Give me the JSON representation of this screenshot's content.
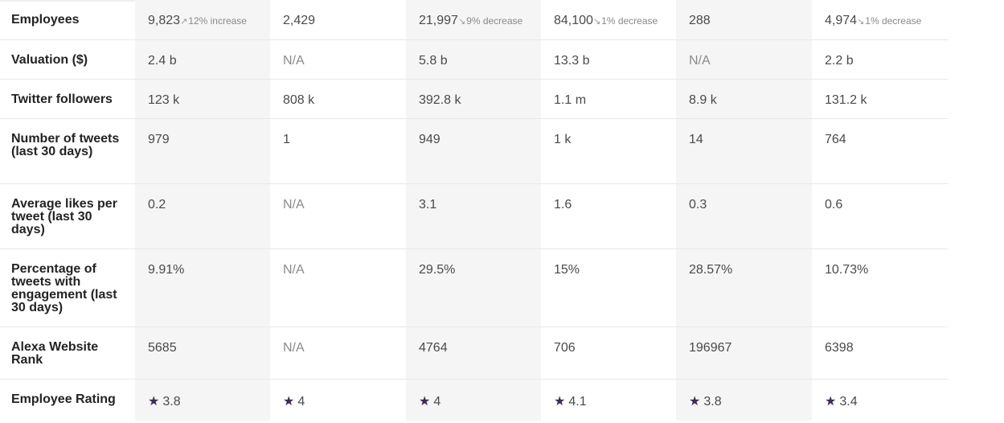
{
  "rows": [
    {
      "label": "Employees",
      "cells": [
        {
          "value": "9,823",
          "trend": "12% increase",
          "trend_dir": "up"
        },
        {
          "value": "2,429"
        },
        {
          "value": "21,997",
          "trend": "9% decrease",
          "trend_dir": "down"
        },
        {
          "value": "84,100",
          "trend": "1% decrease",
          "trend_dir": "down"
        },
        {
          "value": "288"
        },
        {
          "value": "4,974",
          "trend": "1% decrease",
          "trend_dir": "down"
        }
      ]
    },
    {
      "label": "Valuation ($)",
      "cells": [
        {
          "value": "2.4 b"
        },
        {
          "value": "N/A"
        },
        {
          "value": "5.8 b"
        },
        {
          "value": "13.3 b"
        },
        {
          "value": "N/A"
        },
        {
          "value": "2.2 b"
        }
      ]
    },
    {
      "label": "Twitter followers",
      "cells": [
        {
          "value": "123 k"
        },
        {
          "value": "808 k"
        },
        {
          "value": "392.8 k"
        },
        {
          "value": "1.1 m"
        },
        {
          "value": "8.9 k"
        },
        {
          "value": "131.2 k"
        }
      ]
    },
    {
      "label": "Number of tweets (last 30 days)",
      "cells": [
        {
          "value": "979"
        },
        {
          "value": "1"
        },
        {
          "value": "949"
        },
        {
          "value": "1 k"
        },
        {
          "value": "14"
        },
        {
          "value": "764"
        }
      ]
    },
    {
      "label": "Average likes per tweet (last 30 days)",
      "cells": [
        {
          "value": "0.2"
        },
        {
          "value": "N/A"
        },
        {
          "value": "3.1"
        },
        {
          "value": "1.6"
        },
        {
          "value": "0.3"
        },
        {
          "value": "0.6"
        }
      ]
    },
    {
      "label": "Percentage of tweets with engagement (last 30 days)",
      "cells": [
        {
          "value": "9.91%"
        },
        {
          "value": "N/A"
        },
        {
          "value": "29.5%"
        },
        {
          "value": "15%"
        },
        {
          "value": "28.57%"
        },
        {
          "value": "10.73%"
        }
      ]
    },
    {
      "label": "Alexa Website Rank",
      "cells": [
        {
          "value": "5685"
        },
        {
          "value": "N/A"
        },
        {
          "value": "4764"
        },
        {
          "value": "706"
        },
        {
          "value": "196967"
        },
        {
          "value": "6398"
        }
      ]
    },
    {
      "label": "Employee Rating",
      "cells": [
        {
          "value": "3.8",
          "star": true
        },
        {
          "value": "4",
          "star": true
        },
        {
          "value": "4",
          "star": true
        },
        {
          "value": "4.1",
          "star": true
        },
        {
          "value": "3.8",
          "star": true
        },
        {
          "value": "3.4",
          "star": true
        }
      ]
    }
  ],
  "icons": {
    "trend_up": "trend-up-icon",
    "trend_down": "trend-down-icon",
    "star": "star-icon"
  },
  "colors": {
    "star": "#3d2a55",
    "shade": "#f5f5f5",
    "muted": "#8a8a8a"
  }
}
